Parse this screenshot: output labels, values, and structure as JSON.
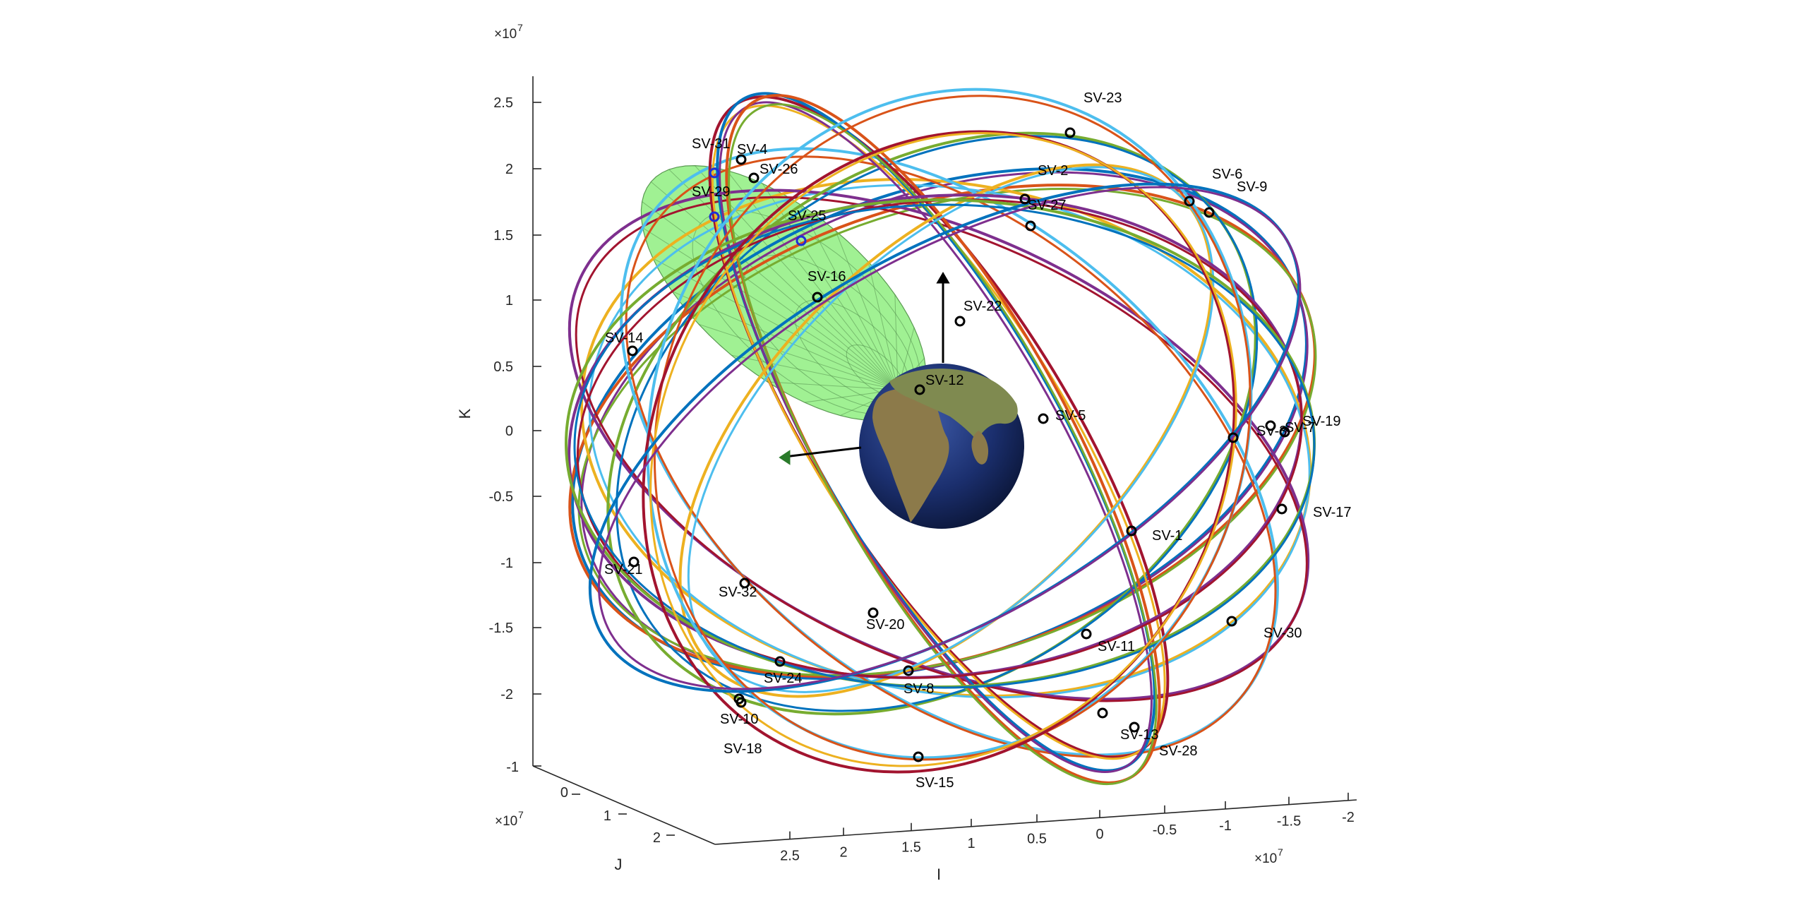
{
  "chart_data": {
    "type": "orbit-3d",
    "title": "",
    "axes": {
      "x": {
        "label": "I",
        "ticks": [
          "2.5",
          "2",
          "1.5",
          "1",
          "0.5",
          "0",
          "-0.5",
          "-1",
          "-1.5",
          "-2"
        ],
        "multiplier": "×10",
        "multiplier_exp": "7",
        "range": [
          -2.2,
          2.8
        ]
      },
      "y": {
        "label": "J",
        "ticks": [
          "-1",
          "0",
          "1",
          "2"
        ],
        "multiplier": "×10",
        "multiplier_exp": "7",
        "range": [
          -1.4,
          2.6
        ]
      },
      "z": {
        "label": "K",
        "ticks": [
          "2.5",
          "2",
          "1.5",
          "1",
          "0.5",
          "0",
          "-0.5",
          "-1",
          "-1.5",
          "-2"
        ],
        "multiplier": "×10",
        "multiplier_exp": "7",
        "range": [
          -2.4,
          2.8
        ]
      }
    },
    "grid": false,
    "sensor_cone_color": "#7CEB6A",
    "earth_colors": {
      "ocean": "#1b2f6e",
      "land": "#8c7a4a"
    },
    "orbit_colors": [
      "#0072BD",
      "#D95319",
      "#EDB120",
      "#7E2F8E",
      "#77AC30",
      "#4DBEEE",
      "#A2142F"
    ],
    "satellites": [
      {
        "name": "SV-23"
      },
      {
        "name": "SV-6"
      },
      {
        "name": "SV-9"
      },
      {
        "name": "SV-31"
      },
      {
        "name": "SV-4"
      },
      {
        "name": "SV-26"
      },
      {
        "name": "SV-2"
      },
      {
        "name": "SV-29"
      },
      {
        "name": "SV-25"
      },
      {
        "name": "SV-16"
      },
      {
        "name": "SV-22"
      },
      {
        "name": "SV-12"
      },
      {
        "name": "SV-5"
      },
      {
        "name": "SV-14"
      },
      {
        "name": "SV-19"
      },
      {
        "name": "SV-3"
      },
      {
        "name": "SV-17"
      },
      {
        "name": "SV-1"
      },
      {
        "name": "SV-21"
      },
      {
        "name": "SV-20"
      },
      {
        "name": "SV-30"
      },
      {
        "name": "SV-11"
      },
      {
        "name": "SV-24"
      },
      {
        "name": "SV-8"
      },
      {
        "name": "SV-10"
      },
      {
        "name": "SV-18"
      },
      {
        "name": "SV-13"
      },
      {
        "name": "SV-28"
      },
      {
        "name": "SV-15"
      },
      {
        "name": "SV-27"
      },
      {
        "name": "SV-32"
      },
      {
        "name": "SV-7"
      }
    ]
  }
}
